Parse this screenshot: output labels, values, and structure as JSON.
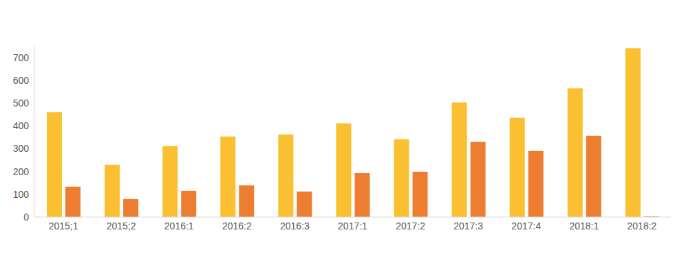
{
  "chart_data": {
    "type": "bar",
    "categories": [
      "2015;1",
      "2015;2",
      "2016:1",
      "2016:2",
      "2016:3",
      "2017:1",
      "2017:2",
      "2017:3",
      "2017:4",
      "2018:1",
      "2018:2"
    ],
    "series": [
      {
        "color": "#fbbf32",
        "values": [
          460,
          230,
          311,
          353,
          362,
          411,
          341,
          502,
          435,
          565,
          740
        ]
      },
      {
        "color": "#ed7d31",
        "values": [
          133,
          79,
          115,
          139,
          112,
          193,
          199,
          329,
          290,
          356,
          3
        ]
      }
    ],
    "ylim": [
      0,
      750
    ],
    "yticks": [
      0,
      100,
      200,
      300,
      400,
      500,
      600,
      700
    ],
    "grid": false
  }
}
